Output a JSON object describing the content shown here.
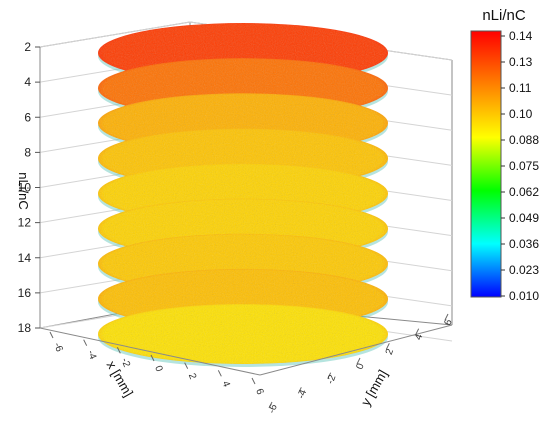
{
  "chart_data": {
    "type": "heatmap",
    "title": "",
    "z_axis": {
      "label": "nLi/nC",
      "ticks": [
        "2",
        "4",
        "6",
        "8",
        "10",
        "12",
        "14",
        "16",
        "18"
      ],
      "reversed": true
    },
    "x_axis": {
      "label": "x [mm]",
      "ticks": [
        "-6",
        "-4",
        "-2",
        "0",
        "2",
        "4",
        "6"
      ]
    },
    "y_axis": {
      "label": "y [mm]",
      "ticks": [
        "-6",
        "-4",
        "-2",
        "0",
        "2",
        "4",
        "6"
      ]
    },
    "colorbar": {
      "label": "nLi/nC",
      "ticks": [
        "0.14",
        "0.13",
        "0.11",
        "0.10",
        "0.088",
        "0.075",
        "0.062",
        "0.049",
        "0.036",
        "0.023",
        "0.010"
      ],
      "range": [
        0.01,
        0.14
      ],
      "colors": [
        "#ff0000",
        "#ff8000",
        "#ffff00",
        "#00ff00",
        "#00ffff",
        "#0000ff"
      ]
    },
    "layers": [
      {
        "depth": 2,
        "mean_ratio": 0.128
      },
      {
        "depth": 4,
        "mean_ratio": 0.117
      },
      {
        "depth": 6,
        "mean_ratio": 0.104
      },
      {
        "depth": 8,
        "mean_ratio": 0.1
      },
      {
        "depth": 10,
        "mean_ratio": 0.097
      },
      {
        "depth": 12,
        "mean_ratio": 0.097
      },
      {
        "depth": 14,
        "mean_ratio": 0.099
      },
      {
        "depth": 16,
        "mean_ratio": 0.101
      },
      {
        "depth": 18,
        "mean_ratio": 0.094
      }
    ]
  }
}
